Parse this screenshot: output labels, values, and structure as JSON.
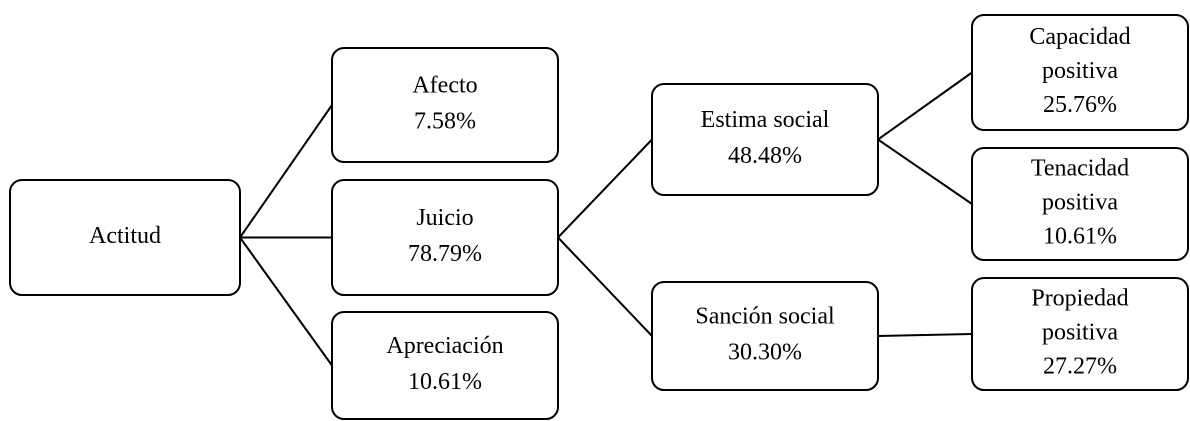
{
  "nodes": [
    {
      "label": [
        "Actitud"
      ]
    },
    {
      "label": [
        "Afecto"
      ],
      "value": "7.58%"
    },
    {
      "label": [
        "Juicio"
      ],
      "value": "78.79%"
    },
    {
      "label": [
        "Apreciación"
      ],
      "value": "10.61%"
    },
    {
      "label": [
        "Estima social"
      ],
      "value": "48.48%"
    },
    {
      "label": [
        "Sanción social"
      ],
      "value": "30.30%"
    },
    {
      "label": [
        "Capacidad",
        "positiva"
      ],
      "value": "25.76%"
    },
    {
      "label": [
        "Tenacidad",
        "positiva"
      ],
      "value": "10.61%"
    },
    {
      "label": [
        "Propiedad",
        "positiva"
      ],
      "value": "27.27%"
    }
  ]
}
